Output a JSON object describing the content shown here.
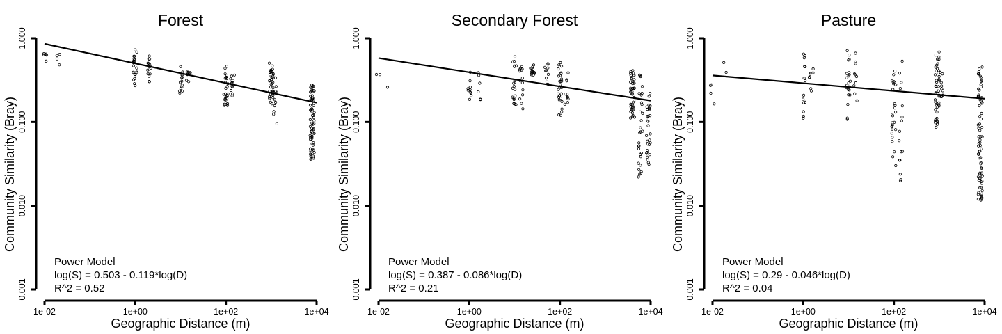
{
  "chart_data": [
    {
      "type": "scatter",
      "title": "Forest",
      "xlabel": "Geographic Distance (m)",
      "ylabel": "Community Similarity (Bray)",
      "x_scale": "log",
      "y_scale": "log",
      "xlim": [
        0.01,
        10000
      ],
      "ylim": [
        0.001,
        1
      ],
      "x_ticks": [
        "1e-02",
        "1e+00",
        "1e+02",
        "1e+04"
      ],
      "y_ticks": [
        "0.001",
        "0.010",
        "0.100",
        "1.000"
      ],
      "annotation": [
        "Power Model",
        "log(S) = 0.503 - 0.119*log(D)",
        "R^2 = 0.52"
      ],
      "fit": {
        "intercept": 0.503,
        "slope": -0.119
      },
      "clusters": [
        {
          "x": 0.01,
          "ymin": 0.5,
          "ymax": 0.72,
          "n": 6
        },
        {
          "x": 0.02,
          "ymin": 0.44,
          "ymax": 0.68,
          "n": 4
        },
        {
          "x": 1.0,
          "ymin": 0.24,
          "ymax": 0.75,
          "n": 22
        },
        {
          "x": 2.0,
          "ymin": 0.3,
          "ymax": 0.66,
          "n": 15
        },
        {
          "x": 10,
          "ymin": 0.22,
          "ymax": 0.46,
          "n": 14
        },
        {
          "x": 15,
          "ymin": 0.26,
          "ymax": 0.48,
          "n": 8
        },
        {
          "x": 100,
          "ymin": 0.14,
          "ymax": 0.48,
          "n": 26
        },
        {
          "x": 140,
          "ymin": 0.2,
          "ymax": 0.38,
          "n": 12
        },
        {
          "x": 1000,
          "ymin": 0.16,
          "ymax": 0.52,
          "n": 38
        },
        {
          "x": 1200,
          "ymin": 0.09,
          "ymax": 0.35,
          "n": 10
        },
        {
          "x": 8000,
          "ymin": 0.035,
          "ymax": 0.28,
          "n": 70
        }
      ]
    },
    {
      "type": "scatter",
      "title": "Secondary Forest",
      "xlabel": "Geographic Distance (m)",
      "ylabel": "Community Similarity (Bray)",
      "x_scale": "log",
      "y_scale": "log",
      "xlim": [
        0.01,
        10000
      ],
      "ylim": [
        0.001,
        1
      ],
      "x_ticks": [
        "1e-02",
        "1e+00",
        "1e+02",
        "1e+04"
      ],
      "y_ticks": [
        "0.001",
        "0.010",
        "0.100",
        "1.000"
      ],
      "annotation": [
        "Power Model",
        "log(S) = 0.387 - 0.086*log(D)",
        "R^2 = 0.21"
      ],
      "fit": {
        "intercept": 0.387,
        "slope": -0.086
      },
      "clusters": [
        {
          "x": 0.01,
          "ymin": 0.36,
          "ymax": 0.42,
          "n": 2
        },
        {
          "x": 0.015,
          "ymin": 0.26,
          "ymax": 0.26,
          "n": 1
        },
        {
          "x": 1.0,
          "ymin": 0.17,
          "ymax": 0.42,
          "n": 10
        },
        {
          "x": 1.6,
          "ymin": 0.18,
          "ymax": 0.46,
          "n": 6
        },
        {
          "x": 10,
          "ymin": 0.16,
          "ymax": 0.62,
          "n": 20
        },
        {
          "x": 14,
          "ymin": 0.14,
          "ymax": 0.52,
          "n": 14
        },
        {
          "x": 25,
          "ymin": 0.35,
          "ymax": 0.48,
          "n": 14
        },
        {
          "x": 50,
          "ymin": 0.28,
          "ymax": 0.5,
          "n": 10
        },
        {
          "x": 100,
          "ymin": 0.11,
          "ymax": 0.55,
          "n": 28
        },
        {
          "x": 140,
          "ymin": 0.15,
          "ymax": 0.4,
          "n": 10
        },
        {
          "x": 4000,
          "ymin": 0.11,
          "ymax": 0.45,
          "n": 44
        },
        {
          "x": 6000,
          "ymin": 0.022,
          "ymax": 0.5,
          "n": 30
        },
        {
          "x": 9000,
          "ymin": 0.03,
          "ymax": 0.24,
          "n": 30
        }
      ]
    },
    {
      "type": "scatter",
      "title": "Pasture",
      "xlabel": "Geographic Distance (m)",
      "ylabel": "Community Similarity (Bray)",
      "x_scale": "log",
      "y_scale": "log",
      "xlim": [
        0.01,
        10000
      ],
      "ylim": [
        0.001,
        1
      ],
      "x_ticks": [
        "1e-02",
        "1e+00",
        "1e+02",
        "1e+04"
      ],
      "y_ticks": [
        "0.001",
        "0.010",
        "0.100",
        "1.000"
      ],
      "annotation": [
        "Power Model",
        "log(S) = 0.29 - 0.046*log(D)",
        "R^2 = 0.04"
      ],
      "fit": {
        "intercept": 0.29,
        "slope": -0.046
      },
      "clusters": [
        {
          "x": 0.01,
          "ymin": 0.16,
          "ymax": 0.3,
          "n": 4
        },
        {
          "x": 0.018,
          "ymin": 0.33,
          "ymax": 0.65,
          "n": 2
        },
        {
          "x": 1.0,
          "ymin": 0.1,
          "ymax": 0.7,
          "n": 14
        },
        {
          "x": 1.5,
          "ymin": 0.22,
          "ymax": 0.44,
          "n": 8
        },
        {
          "x": 10,
          "ymin": 0.1,
          "ymax": 0.75,
          "n": 22
        },
        {
          "x": 14,
          "ymin": 0.16,
          "ymax": 0.72,
          "n": 10
        },
        {
          "x": 100,
          "ymin": 0.03,
          "ymax": 0.45,
          "n": 26
        },
        {
          "x": 140,
          "ymin": 0.015,
          "ymax": 0.66,
          "n": 16
        },
        {
          "x": 900,
          "ymin": 0.085,
          "ymax": 0.75,
          "n": 46
        },
        {
          "x": 1100,
          "ymin": 0.2,
          "ymax": 0.4,
          "n": 10
        },
        {
          "x": 8000,
          "ymin": 0.011,
          "ymax": 0.46,
          "n": 80
        }
      ]
    }
  ]
}
